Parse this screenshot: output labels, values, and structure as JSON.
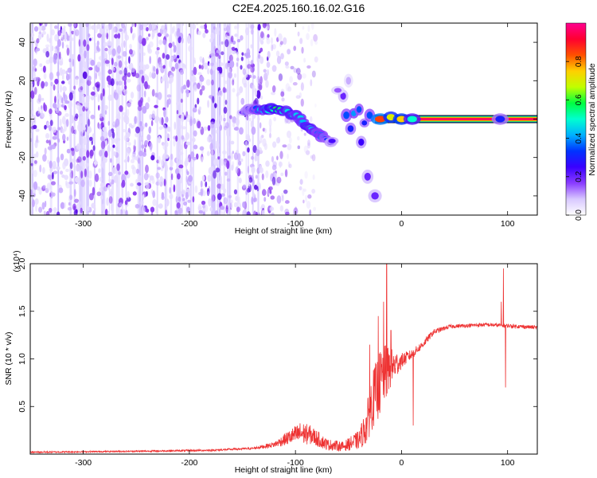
{
  "title": "C2E4.2025.160.16.02.G16",
  "colors": {
    "snr_line": "#ee3333",
    "spectrogram_purple": "#7a2cf0",
    "colormap": [
      "#ffffff",
      "#d8c8ff",
      "#8a3cff",
      "#3a00ff",
      "#0033ff",
      "#00b0ff",
      "#00ffd0",
      "#00ff40",
      "#c0ff00",
      "#ffd000",
      "#ff5000",
      "#ff0030",
      "#ff0090"
    ]
  },
  "chart_data": [
    {
      "type": "heatmap",
      "name": "spectrogram",
      "xlabel": "Height of straight line (km)",
      "ylabel": "Frequency (Hz)",
      "xlim": [
        -350,
        128
      ],
      "ylim": [
        -50,
        50
      ],
      "xticks": [
        -300,
        -200,
        -100,
        0,
        100
      ],
      "yticks": [
        -40,
        -20,
        0,
        20,
        40
      ],
      "colorbar": {
        "label": "Normalized spectral amplitude",
        "range": [
          0,
          1
        ],
        "ticks": [
          "0.0",
          "0.2",
          "0.4",
          "0.6",
          "0.8"
        ]
      },
      "noise_region_x": [
        -350,
        -135
      ],
      "noise_sparse_x": [
        -135,
        -80
      ],
      "signal_ridge": [
        {
          "x": -150,
          "y": 4,
          "a": 0.25
        },
        {
          "x": -140,
          "y": 5,
          "a": 0.3
        },
        {
          "x": -130,
          "y": 5,
          "a": 0.45
        },
        {
          "x": -120,
          "y": 5,
          "a": 0.55
        },
        {
          "x": -110,
          "y": 4,
          "a": 0.5
        },
        {
          "x": -100,
          "y": 2,
          "a": 0.45
        },
        {
          "x": -92,
          "y": -2,
          "a": 0.45
        },
        {
          "x": -85,
          "y": -5,
          "a": 0.45
        },
        {
          "x": -78,
          "y": -8,
          "a": 0.4
        },
        {
          "x": -72,
          "y": -10,
          "a": 0.35
        },
        {
          "x": -65,
          "y": -12,
          "a": 0.25
        }
      ],
      "signal_blobs": [
        {
          "x": -55,
          "y": 12,
          "a": 0.2
        },
        {
          "x": -52,
          "y": 2,
          "a": 0.35
        },
        {
          "x": -48,
          "y": -5,
          "a": 0.3
        },
        {
          "x": -45,
          "y": 3,
          "a": 0.4
        },
        {
          "x": -40,
          "y": 5,
          "a": 0.35
        },
        {
          "x": -38,
          "y": -12,
          "a": 0.25
        },
        {
          "x": -35,
          "y": -2,
          "a": 0.3
        },
        {
          "x": -30,
          "y": 2,
          "a": 0.35
        },
        {
          "x": -32,
          "y": -30,
          "a": 0.2
        },
        {
          "x": -25,
          "y": -40,
          "a": 0.2
        },
        {
          "x": -60,
          "y": 15,
          "a": 0.15
        },
        {
          "x": -50,
          "y": 20,
          "a": 0.1
        }
      ],
      "carrier": {
        "x_start": -25,
        "x_end": 128,
        "y": 0,
        "peak": 1.0
      },
      "carrier_spots": [
        {
          "x": -20,
          "y": 0,
          "a": 0.85
        },
        {
          "x": -10,
          "y": 1,
          "a": 0.7
        },
        {
          "x": 0,
          "y": 0,
          "a": 0.75
        },
        {
          "x": 10,
          "y": 0,
          "a": 0.5
        },
        {
          "x": 93,
          "y": 0,
          "a": 0.3
        }
      ]
    },
    {
      "type": "line",
      "name": "snr",
      "xlabel": "Height of straight line (km)",
      "ylabel": "SNR (10 * v/v)",
      "y_multiplier": "(x10⁴)",
      "xlim": [
        -350,
        128
      ],
      "ylim": [
        0,
        2.0
      ],
      "xticks": [
        -300,
        -200,
        -100,
        0,
        100
      ],
      "yticks": [
        0.5,
        1.0,
        1.5,
        2.0
      ],
      "ytick_labels": [
        "0.5",
        "1.0",
        "1.5",
        "2.0"
      ],
      "profile": [
        {
          "x": -350,
          "y": 0.02,
          "n": 0.008
        },
        {
          "x": -250,
          "y": 0.03,
          "n": 0.008
        },
        {
          "x": -180,
          "y": 0.04,
          "n": 0.01
        },
        {
          "x": -140,
          "y": 0.06,
          "n": 0.012
        },
        {
          "x": -120,
          "y": 0.1,
          "n": 0.03
        },
        {
          "x": -105,
          "y": 0.18,
          "n": 0.08
        },
        {
          "x": -95,
          "y": 0.22,
          "n": 0.12
        },
        {
          "x": -85,
          "y": 0.2,
          "n": 0.1
        },
        {
          "x": -70,
          "y": 0.1,
          "n": 0.06
        },
        {
          "x": -55,
          "y": 0.08,
          "n": 0.05
        },
        {
          "x": -40,
          "y": 0.15,
          "n": 0.1
        },
        {
          "x": -33,
          "y": 0.3,
          "n": 0.2
        },
        {
          "x": -28,
          "y": 0.55,
          "n": 0.3
        },
        {
          "x": -20,
          "y": 0.75,
          "n": 0.35
        },
        {
          "x": -15,
          "y": 0.85,
          "n": 0.3
        },
        {
          "x": -8,
          "y": 0.92,
          "n": 0.18
        },
        {
          "x": 0,
          "y": 0.98,
          "n": 0.08
        },
        {
          "x": 10,
          "y": 1.05,
          "n": 0.05
        },
        {
          "x": 20,
          "y": 1.15,
          "n": 0.04
        },
        {
          "x": 30,
          "y": 1.28,
          "n": 0.03
        },
        {
          "x": 45,
          "y": 1.34,
          "n": 0.02
        },
        {
          "x": 80,
          "y": 1.36,
          "n": 0.02
        },
        {
          "x": 128,
          "y": 1.33,
          "n": 0.02
        }
      ],
      "spikes": [
        {
          "x": -14,
          "y": 2.0
        },
        {
          "x": -17,
          "y": 1.6
        },
        {
          "x": -22,
          "y": 1.45
        },
        {
          "x": -30,
          "y": 1.15
        },
        {
          "x": -10,
          "y": 1.3
        },
        {
          "x": 11,
          "y": 0.3
        },
        {
          "x": 96,
          "y": 1.95
        },
        {
          "x": 98,
          "y": 0.7
        },
        {
          "x": 94,
          "y": 1.6
        }
      ]
    }
  ]
}
